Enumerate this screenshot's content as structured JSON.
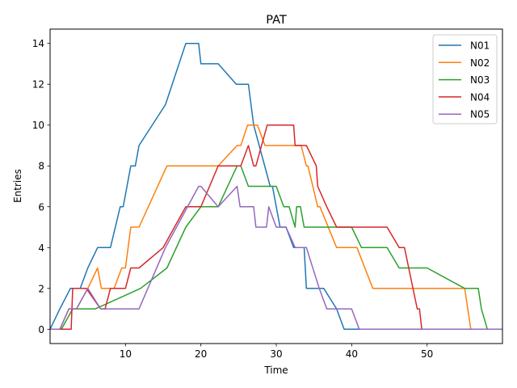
{
  "chart_data": {
    "type": "line",
    "title": "PAT",
    "xlabel": "Time",
    "ylabel": "Entries",
    "xlim": [
      0,
      60
    ],
    "ylim": [
      -0.7,
      14.7
    ],
    "xticks": [
      10,
      20,
      30,
      40,
      50
    ],
    "yticks": [
      0,
      2,
      4,
      6,
      8,
      10,
      12,
      14
    ],
    "grid": false,
    "legend_position": "top-right",
    "series": [
      {
        "name": "N01",
        "color": "#1f77b4",
        "points": [
          [
            0,
            0
          ],
          [
            1.3,
            1
          ],
          [
            2.7,
            2
          ],
          [
            4,
            2
          ],
          [
            5,
            3
          ],
          [
            6.3,
            4
          ],
          [
            8,
            4
          ],
          [
            9.3,
            6
          ],
          [
            9.7,
            6
          ],
          [
            10.7,
            8
          ],
          [
            11.3,
            8
          ],
          [
            11.8,
            9
          ],
          [
            15.3,
            11
          ],
          [
            18,
            14
          ],
          [
            19.7,
            14
          ],
          [
            20,
            13
          ],
          [
            22.3,
            13
          ],
          [
            24.7,
            12
          ],
          [
            26.3,
            12
          ],
          [
            27,
            10
          ],
          [
            29.2,
            7
          ],
          [
            29.5,
            7
          ],
          [
            30,
            6
          ],
          [
            30.5,
            5
          ],
          [
            31.3,
            5
          ],
          [
            32.3,
            4
          ],
          [
            33.7,
            4
          ],
          [
            34,
            2
          ],
          [
            35,
            2
          ],
          [
            36.3,
            2
          ],
          [
            38,
            1
          ],
          [
            39,
            0
          ],
          [
            60,
            0
          ]
        ]
      },
      {
        "name": "N02",
        "color": "#ff7f0e",
        "points": [
          [
            0,
            0
          ],
          [
            1.3,
            0
          ],
          [
            2.5,
            1
          ],
          [
            3.5,
            1
          ],
          [
            5,
            2
          ],
          [
            6.3,
            3
          ],
          [
            6.8,
            2
          ],
          [
            8.5,
            2
          ],
          [
            9.5,
            3
          ],
          [
            10,
            3
          ],
          [
            10.7,
            5
          ],
          [
            11.8,
            5
          ],
          [
            15.5,
            8
          ],
          [
            22.3,
            8
          ],
          [
            24.8,
            9
          ],
          [
            25.3,
            9
          ],
          [
            26.2,
            10
          ],
          [
            27.5,
            10
          ],
          [
            28.5,
            9
          ],
          [
            33.3,
            9
          ],
          [
            34,
            8
          ],
          [
            34.2,
            8
          ],
          [
            35.5,
            6
          ],
          [
            35.8,
            6
          ],
          [
            38,
            4
          ],
          [
            40.7,
            4
          ],
          [
            42.8,
            2
          ],
          [
            55,
            2
          ],
          [
            55.8,
            0
          ],
          [
            60,
            0
          ]
        ]
      },
      {
        "name": "N03",
        "color": "#2ca02c",
        "points": [
          [
            0,
            0
          ],
          [
            1.5,
            0
          ],
          [
            3,
            1
          ],
          [
            6,
            1
          ],
          [
            12,
            2
          ],
          [
            15.5,
            3
          ],
          [
            18,
            5
          ],
          [
            20,
            6
          ],
          [
            22.3,
            6
          ],
          [
            24.8,
            8
          ],
          [
            25.3,
            8
          ],
          [
            26.3,
            7
          ],
          [
            30,
            7
          ],
          [
            31,
            6
          ],
          [
            31.7,
            6
          ],
          [
            32.5,
            5
          ],
          [
            32.7,
            6
          ],
          [
            33.2,
            6
          ],
          [
            33.7,
            5
          ],
          [
            38.5,
            5
          ],
          [
            40,
            5
          ],
          [
            41.3,
            4
          ],
          [
            44.7,
            4
          ],
          [
            46.3,
            3
          ],
          [
            50,
            3
          ],
          [
            55,
            2
          ],
          [
            56.8,
            2
          ],
          [
            57.2,
            1
          ],
          [
            58,
            0
          ],
          [
            60,
            0
          ]
        ]
      },
      {
        "name": "N04",
        "color": "#d62728",
        "points": [
          [
            0,
            0
          ],
          [
            2.8,
            0
          ],
          [
            3,
            2
          ],
          [
            4.8,
            2
          ],
          [
            6.7,
            1
          ],
          [
            7.3,
            1
          ],
          [
            8,
            2
          ],
          [
            10,
            2
          ],
          [
            10.7,
            3
          ],
          [
            11.8,
            3
          ],
          [
            15,
            4
          ],
          [
            18,
            6
          ],
          [
            20,
            6
          ],
          [
            22.3,
            8
          ],
          [
            23.8,
            8
          ],
          [
            25.3,
            8
          ],
          [
            26.3,
            9
          ],
          [
            27,
            8
          ],
          [
            27.3,
            8
          ],
          [
            28.8,
            10
          ],
          [
            32.3,
            10
          ],
          [
            32.5,
            9
          ],
          [
            34,
            9
          ],
          [
            35.3,
            8
          ],
          [
            35.5,
            7
          ],
          [
            36.7,
            6
          ],
          [
            38,
            5
          ],
          [
            40,
            5
          ],
          [
            44.7,
            5
          ],
          [
            46.3,
            4
          ],
          [
            47,
            4
          ],
          [
            48.7,
            1
          ],
          [
            49,
            1
          ],
          [
            49.3,
            0
          ],
          [
            60,
            0
          ]
        ]
      },
      {
        "name": "N05",
        "color": "#9467bd",
        "points": [
          [
            0,
            0
          ],
          [
            1.3,
            0
          ],
          [
            2.5,
            1
          ],
          [
            3.5,
            1
          ],
          [
            5,
            2
          ],
          [
            6.7,
            1
          ],
          [
            11.8,
            1
          ],
          [
            15.3,
            4
          ],
          [
            19.7,
            7
          ],
          [
            20,
            7
          ],
          [
            22.3,
            6
          ],
          [
            24.8,
            7
          ],
          [
            25.2,
            6
          ],
          [
            27,
            6
          ],
          [
            27.3,
            5
          ],
          [
            28.7,
            5
          ],
          [
            29,
            6
          ],
          [
            30,
            5
          ],
          [
            31.3,
            5
          ],
          [
            32.5,
            4
          ],
          [
            34,
            4
          ],
          [
            35.7,
            2
          ],
          [
            36.7,
            1
          ],
          [
            40,
            1
          ],
          [
            41,
            0
          ],
          [
            60,
            0
          ]
        ]
      }
    ]
  }
}
